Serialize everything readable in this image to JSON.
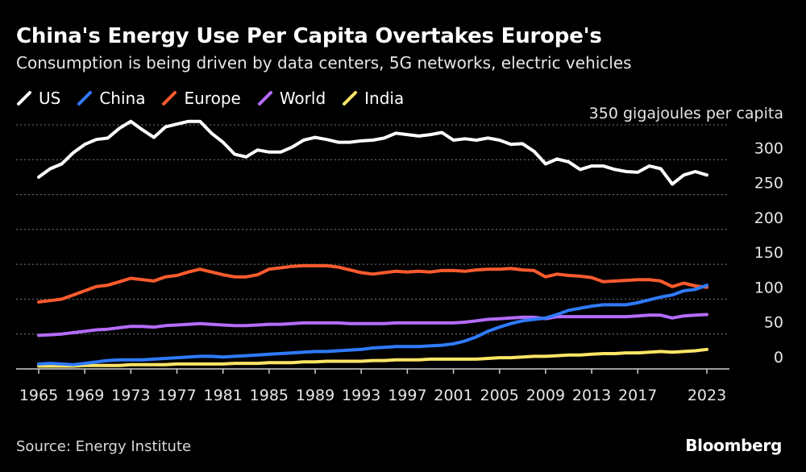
{
  "title": "China's Energy Use Per Capita Overtakes Europe's",
  "subtitle": "Consumption is being driven by data centers, 5G networks, electric vehicles",
  "source": "Source: Energy Institute",
  "brand": "Bloomberg",
  "chart_data": {
    "type": "line",
    "ylabel": "gigajoules per capita",
    "ylim": [
      0,
      350
    ],
    "yticks": [
      0,
      50,
      100,
      150,
      200,
      250,
      300,
      350
    ],
    "top_tick_label": "350 gigajoules per capita",
    "xlim": [
      1965,
      2023
    ],
    "xticks": [
      1965,
      1969,
      1973,
      1977,
      1981,
      1985,
      1989,
      1993,
      1997,
      2001,
      2005,
      2009,
      2013,
      2017,
      2023
    ],
    "xtick_labels": [
      "1965",
      "1969",
      "1973",
      "1977",
      "1981",
      "1985",
      "1989",
      "1993",
      "1997",
      "2001",
      "2005",
      "2009",
      "2013",
      "2017",
      "2023"
    ],
    "legend_position": "top-left",
    "x": [
      1965,
      1966,
      1967,
      1968,
      1969,
      1970,
      1971,
      1972,
      1973,
      1974,
      1975,
      1976,
      1977,
      1978,
      1979,
      1980,
      1981,
      1982,
      1983,
      1984,
      1985,
      1986,
      1987,
      1988,
      1989,
      1990,
      1991,
      1992,
      1993,
      1994,
      1995,
      1996,
      1997,
      1998,
      1999,
      2000,
      2001,
      2002,
      2003,
      2004,
      2005,
      2006,
      2007,
      2008,
      2009,
      2010,
      2011,
      2012,
      2013,
      2014,
      2015,
      2016,
      2017,
      2018,
      2019,
      2020,
      2021,
      2022,
      2023
    ],
    "series": [
      {
        "name": "US",
        "color": "#ffffff",
        "values": [
          275,
          287,
          294,
          310,
          322,
          329,
          331,
          345,
          355,
          343,
          332,
          347,
          351,
          355,
          355,
          338,
          325,
          308,
          304,
          314,
          311,
          311,
          318,
          328,
          332,
          329,
          325,
          325,
          327,
          328,
          331,
          338,
          336,
          334,
          336,
          339,
          328,
          330,
          328,
          331,
          328,
          322,
          323,
          312,
          294,
          301,
          297,
          286,
          291,
          291,
          286,
          283,
          282,
          291,
          287,
          265,
          278,
          283,
          278
        ]
      },
      {
        "name": "China",
        "color": "#2f7bff",
        "values": [
          7,
          8,
          7,
          6,
          8,
          10,
          12,
          13,
          13,
          13,
          14,
          15,
          16,
          17,
          18,
          18,
          17,
          18,
          19,
          20,
          21,
          22,
          23,
          24,
          25,
          25,
          26,
          27,
          28,
          30,
          31,
          32,
          32,
          32,
          33,
          34,
          36,
          40,
          46,
          54,
          60,
          65,
          69,
          71,
          73,
          78,
          84,
          87,
          90,
          92,
          92,
          92,
          95,
          99,
          103,
          106,
          112,
          114,
          120
        ]
      },
      {
        "name": "Europe",
        "color": "#ff5b2e",
        "values": [
          96,
          98,
          100,
          106,
          112,
          118,
          120,
          125,
          130,
          128,
          126,
          132,
          134,
          139,
          143,
          139,
          135,
          132,
          132,
          135,
          143,
          145,
          147,
          148,
          148,
          148,
          146,
          142,
          138,
          136,
          138,
          140,
          139,
          140,
          139,
          141,
          141,
          140,
          142,
          143,
          143,
          144,
          142,
          141,
          132,
          136,
          134,
          133,
          131,
          125,
          126,
          127,
          128,
          128,
          126,
          118,
          123,
          119,
          117
        ]
      },
      {
        "name": "World",
        "color": "#b56cff",
        "values": [
          48,
          49,
          50,
          52,
          54,
          56,
          57,
          59,
          61,
          61,
          60,
          62,
          63,
          64,
          65,
          64,
          63,
          62,
          62,
          63,
          64,
          64,
          65,
          66,
          66,
          66,
          66,
          65,
          65,
          65,
          65,
          66,
          66,
          66,
          66,
          66,
          66,
          67,
          69,
          71,
          72,
          73,
          74,
          74,
          72,
          75,
          75,
          75,
          75,
          75,
          75,
          75,
          76,
          77,
          77,
          73,
          76,
          77,
          78
        ]
      },
      {
        "name": "India",
        "color": "#ffe566",
        "values": [
          4,
          4,
          4,
          4,
          5,
          5,
          5,
          5,
          6,
          6,
          6,
          6,
          7,
          7,
          7,
          7,
          7,
          8,
          8,
          8,
          9,
          9,
          9,
          10,
          10,
          11,
          11,
          11,
          11,
          12,
          12,
          13,
          13,
          13,
          14,
          14,
          14,
          14,
          14,
          15,
          16,
          16,
          17,
          18,
          18,
          19,
          20,
          20,
          21,
          22,
          22,
          23,
          23,
          24,
          25,
          24,
          25,
          26,
          28
        ]
      }
    ]
  }
}
